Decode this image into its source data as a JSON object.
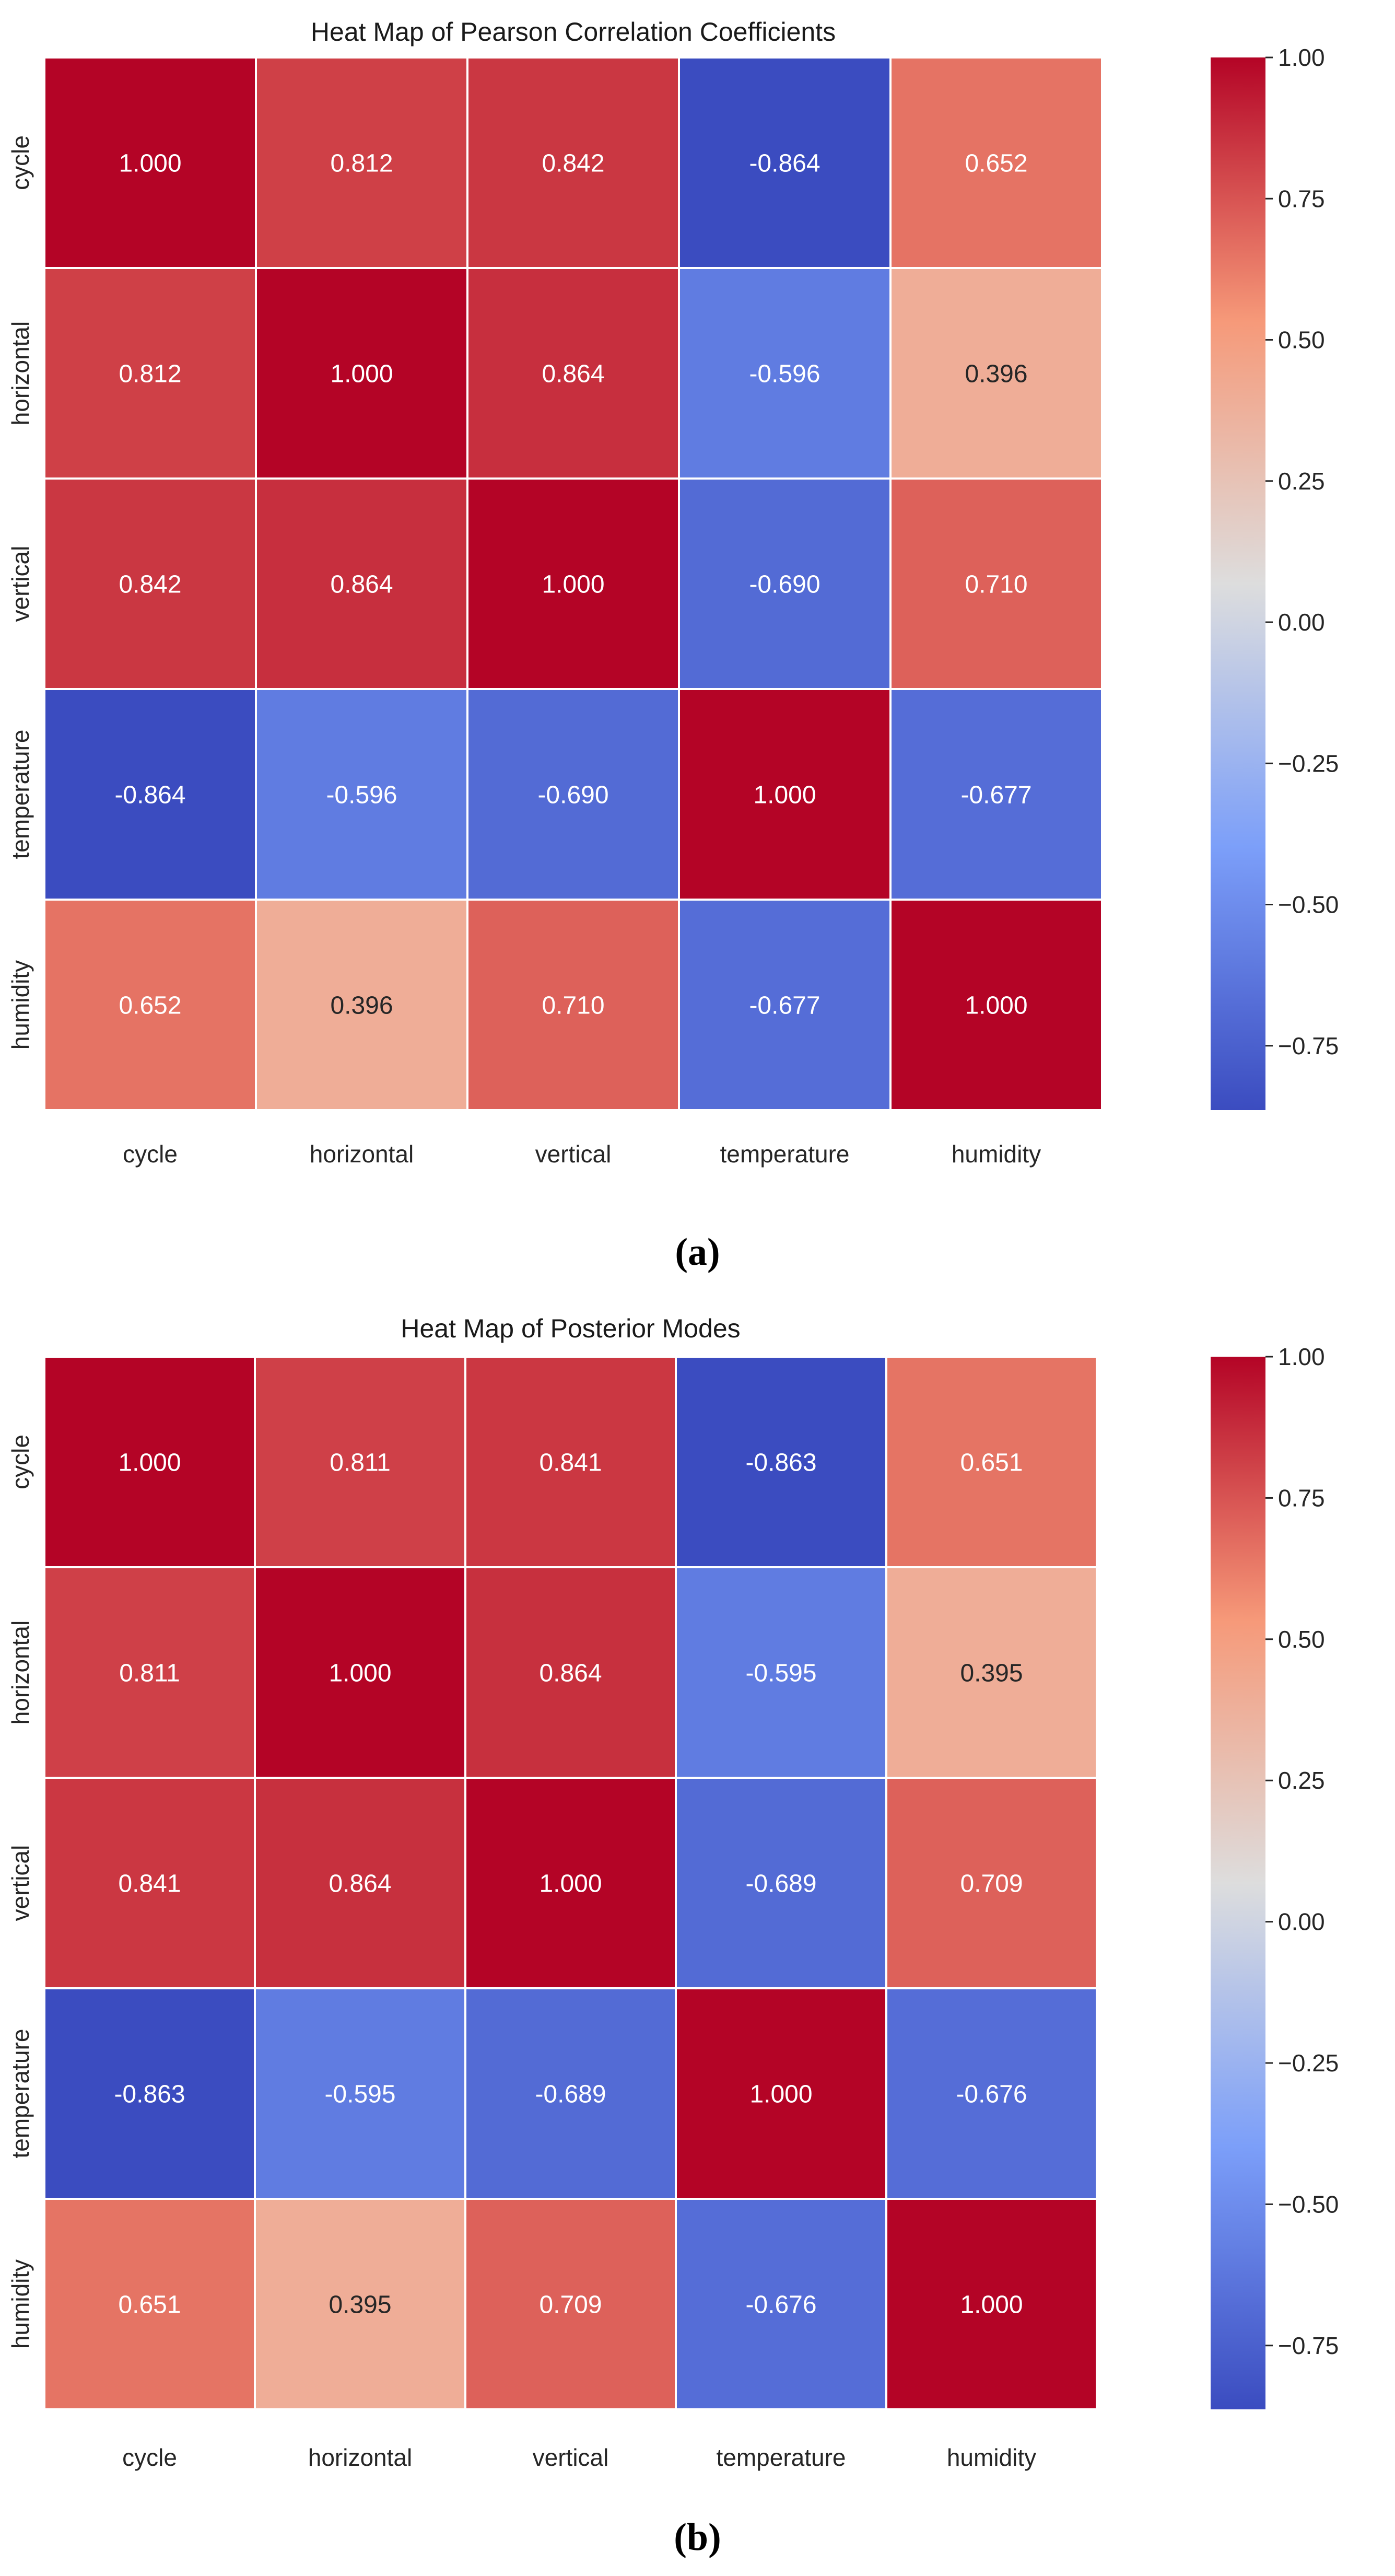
{
  "chart_data": [
    {
      "type": "heatmap",
      "title": "Heat Map of Pearson Correlation Coefficients",
      "caption": "(a)",
      "row_labels": [
        "cycle",
        "horizontal",
        "vertical",
        "temperature",
        "humidity"
      ],
      "col_labels": [
        "cycle",
        "horizontal",
        "vertical",
        "temperature",
        "humidity"
      ],
      "values": [
        [
          1.0,
          0.812,
          0.842,
          -0.864,
          0.652
        ],
        [
          0.812,
          1.0,
          0.864,
          -0.596,
          0.396
        ],
        [
          0.842,
          0.864,
          1.0,
          -0.69,
          0.71
        ],
        [
          -0.864,
          -0.596,
          -0.69,
          1.0,
          -0.677
        ],
        [
          0.652,
          0.396,
          0.71,
          -0.677,
          1.0
        ]
      ],
      "cell_labels": [
        [
          "1.000",
          "0.812",
          "0.842",
          "-0.864",
          "0.652"
        ],
        [
          "0.812",
          "1.000",
          "0.864",
          "-0.596",
          "0.396"
        ],
        [
          "0.842",
          "0.864",
          "1.000",
          "-0.690",
          "0.710"
        ],
        [
          "-0.864",
          "-0.596",
          "-0.690",
          "1.000",
          "-0.677"
        ],
        [
          "0.652",
          "0.396",
          "0.710",
          "-0.677",
          "1.000"
        ]
      ],
      "colorbar": {
        "colormap": "coolwarm",
        "range": [
          -0.864,
          1.0
        ],
        "ticks": [
          1.0,
          0.75,
          0.5,
          0.25,
          0.0,
          -0.25,
          -0.5,
          -0.75
        ],
        "tick_labels": [
          "1.00",
          "0.75",
          "0.50",
          "0.25",
          "0.00",
          "−0.25",
          "−0.50",
          "−0.75"
        ]
      }
    },
    {
      "type": "heatmap",
      "title": "Heat Map of Posterior Modes",
      "caption": "(b)",
      "row_labels": [
        "cycle",
        "horizontal",
        "vertical",
        "temperature",
        "humidity"
      ],
      "col_labels": [
        "cycle",
        "horizontal",
        "vertical",
        "temperature",
        "humidity"
      ],
      "values": [
        [
          1.0,
          0.811,
          0.841,
          -0.863,
          0.651
        ],
        [
          0.811,
          1.0,
          0.864,
          -0.595,
          0.395
        ],
        [
          0.841,
          0.864,
          1.0,
          -0.689,
          0.709
        ],
        [
          -0.863,
          -0.595,
          -0.689,
          1.0,
          -0.676
        ],
        [
          0.651,
          0.395,
          0.709,
          -0.676,
          1.0
        ]
      ],
      "cell_labels": [
        [
          "1.000",
          "0.811",
          "0.841",
          "-0.863",
          "0.651"
        ],
        [
          "0.811",
          "1.000",
          "0.864",
          "-0.595",
          "0.395"
        ],
        [
          "0.841",
          "0.864",
          "1.000",
          "-0.689",
          "0.709"
        ],
        [
          "-0.863",
          "-0.595",
          "-0.689",
          "1.000",
          "-0.676"
        ],
        [
          "0.651",
          "0.395",
          "0.709",
          "-0.676",
          "1.000"
        ]
      ],
      "colorbar": {
        "colormap": "coolwarm",
        "range": [
          -0.863,
          1.0
        ],
        "ticks": [
          1.0,
          0.75,
          0.5,
          0.25,
          0.0,
          -0.25,
          -0.5,
          -0.75
        ],
        "tick_labels": [
          "1.00",
          "0.75",
          "0.50",
          "0.25",
          "0.00",
          "−0.25",
          "−0.50",
          "−0.75"
        ]
      }
    }
  ]
}
